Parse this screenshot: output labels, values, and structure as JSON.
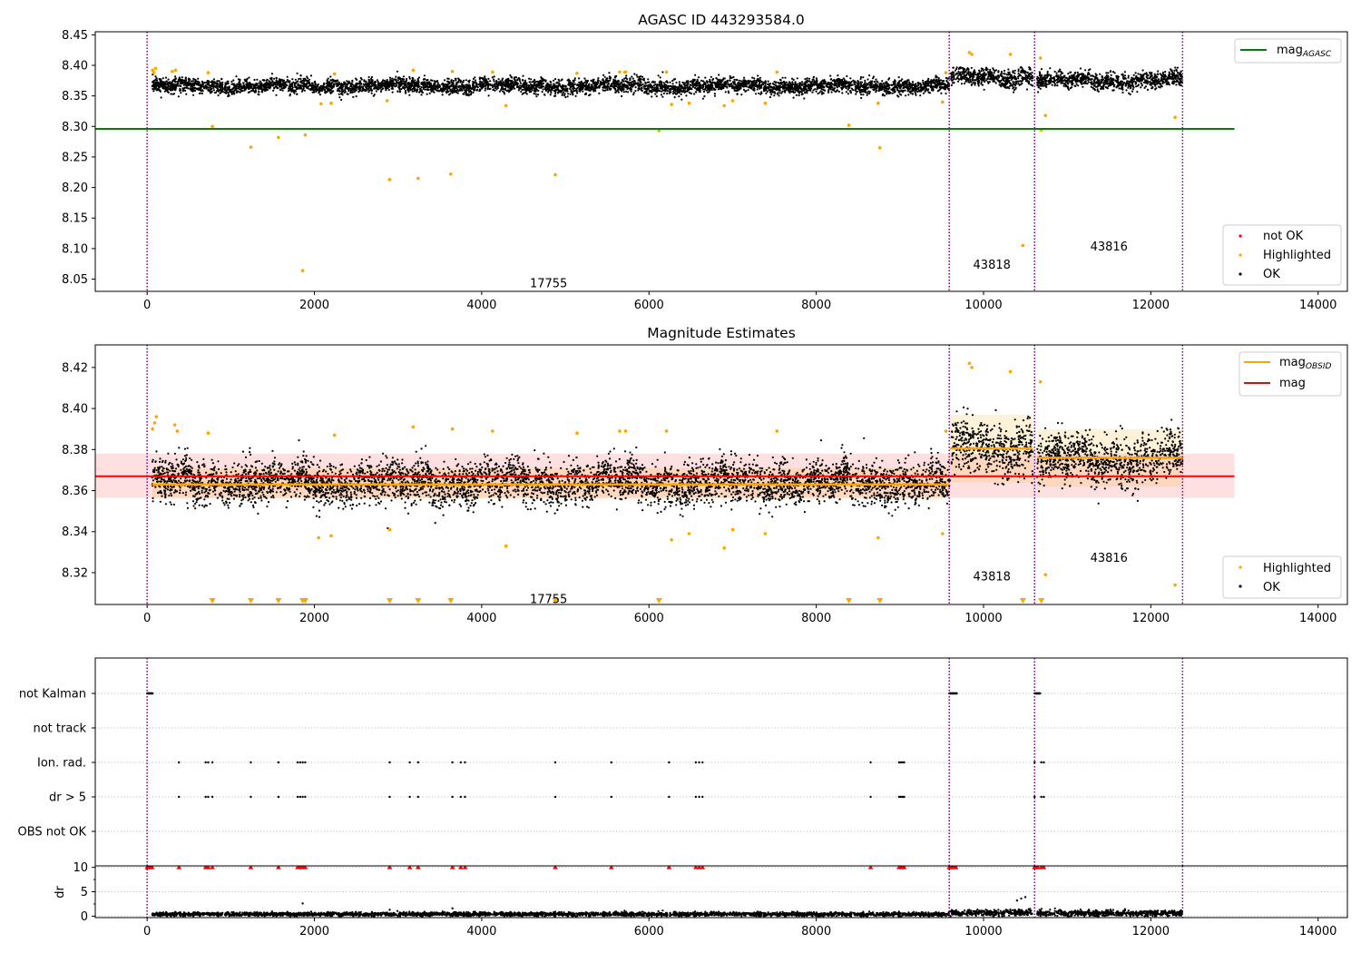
{
  "chart_data": [
    {
      "type": "scatter",
      "title": "AGASC ID 443293584.0",
      "xlabel": "",
      "ylabel": "",
      "xlim": [
        -620,
        14350
      ],
      "ylim": [
        8.03,
        8.455
      ],
      "xticks": [
        0,
        2000,
        4000,
        6000,
        8000,
        10000,
        12000,
        14000
      ],
      "xtick_labels": [
        "0",
        "2000",
        "4000",
        "6000",
        "8000",
        "10000",
        "12000",
        "14000"
      ],
      "yticks": [
        8.05,
        8.1,
        8.15,
        8.2,
        8.25,
        8.3,
        8.35,
        8.4,
        8.45
      ],
      "ytick_labels": [
        "8.05",
        "8.10",
        "8.15",
        "8.20",
        "8.25",
        "8.30",
        "8.35",
        "8.40",
        "8.45"
      ],
      "grid": false,
      "obs_boundaries": [
        0,
        9590,
        10610,
        12380
      ],
      "colors": {
        "ok": "#000000",
        "highlighted": "#ffa500",
        "not_ok": "#ff0000",
        "agasc": "#008000",
        "boundary": "#800080"
      },
      "hlines": [
        {
          "name": "agasc",
          "y": 8.296,
          "x": [
            -620,
            13000
          ]
        }
      ],
      "ok_bands": [
        {
          "x": [
            60,
            9590
          ],
          "center": 8.366,
          "spread": 0.01
        },
        {
          "x": [
            9600,
            10590
          ],
          "center": 8.381,
          "spread": 0.012
        },
        {
          "x": [
            10640,
            12380
          ],
          "center": 8.375,
          "spread": 0.011
        }
      ],
      "highlighted_points": [
        [
          65,
          8.392
        ],
        [
          80,
          8.388
        ],
        [
          100,
          8.395
        ],
        [
          300,
          8.39
        ],
        [
          340,
          8.392
        ],
        [
          730,
          8.388
        ],
        [
          780,
          8.3
        ],
        [
          1240,
          8.266
        ],
        [
          1570,
          8.282
        ],
        [
          1890,
          8.286
        ],
        [
          1860,
          8.064
        ],
        [
          2080,
          8.337
        ],
        [
          2200,
          8.338
        ],
        [
          2240,
          8.386
        ],
        [
          2870,
          8.342
        ],
        [
          2900,
          8.213
        ],
        [
          3180,
          8.392
        ],
        [
          3240,
          8.215
        ],
        [
          3630,
          8.222
        ],
        [
          3650,
          8.39
        ],
        [
          4130,
          8.389
        ],
        [
          4290,
          8.334
        ],
        [
          4880,
          8.221
        ],
        [
          5140,
          8.387
        ],
        [
          5650,
          8.389
        ],
        [
          5720,
          8.389
        ],
        [
          6120,
          8.293
        ],
        [
          6210,
          8.389
        ],
        [
          6270,
          8.336
        ],
        [
          6480,
          8.338
        ],
        [
          6900,
          8.334
        ],
        [
          7000,
          8.342
        ],
        [
          7390,
          8.338
        ],
        [
          7530,
          8.389
        ],
        [
          8390,
          8.302
        ],
        [
          8740,
          8.338
        ],
        [
          8760,
          8.265
        ],
        [
          9510,
          8.34
        ],
        [
          9550,
          8.388
        ],
        [
          9830,
          8.421
        ],
        [
          9860,
          8.418
        ],
        [
          10320,
          8.418
        ],
        [
          10470,
          8.105
        ],
        [
          10680,
          8.412
        ],
        [
          10690,
          8.294
        ],
        [
          10740,
          8.318
        ],
        [
          12290,
          8.315
        ]
      ],
      "annotations": [
        {
          "text": "17755",
          "x": 4800,
          "y": 8.043
        },
        {
          "text": "43818",
          "x": 10100,
          "y": 8.073
        },
        {
          "text": "43816",
          "x": 11500,
          "y": 8.103
        }
      ],
      "legend": {
        "placement": "top-right and lower-right",
        "upper": [
          "mag_AGASC"
        ],
        "lower": [
          "not OK",
          "Highlighted",
          "OK"
        ]
      }
    },
    {
      "type": "scatter",
      "title": "Magnitude Estimates",
      "xlabel": "",
      "ylabel": "",
      "xlim": [
        -620,
        14350
      ],
      "ylim": [
        8.3045,
        8.431
      ],
      "xticks": [
        0,
        2000,
        4000,
        6000,
        8000,
        10000,
        12000,
        14000
      ],
      "xtick_labels": [
        "0",
        "2000",
        "4000",
        "6000",
        "8000",
        "10000",
        "12000",
        "14000"
      ],
      "yticks": [
        8.32,
        8.34,
        8.36,
        8.38,
        8.4,
        8.42
      ],
      "ytick_labels": [
        "8.32",
        "8.34",
        "8.36",
        "8.38",
        "8.40",
        "8.42"
      ],
      "grid": false,
      "obs_boundaries": [
        0,
        9590,
        10610,
        12380
      ],
      "colors": {
        "ok": "#000000",
        "highlighted": "#ffa500",
        "mag": "#ff0000",
        "mag_obsid": "#ffa500",
        "boundary": "#800080"
      },
      "mag_line": {
        "y": 8.367,
        "band": [
          8.3565,
          8.378
        ],
        "x": [
          -620,
          13000
        ]
      },
      "obsid_mags": [
        {
          "x": [
            60,
            9590
          ],
          "y": 8.363,
          "band": [
            8.356,
            8.371
          ]
        },
        {
          "x": [
            9600,
            10590
          ],
          "y": 8.3805,
          "band": [
            8.364,
            8.397
          ]
        },
        {
          "x": [
            10640,
            12380
          ],
          "y": 8.376,
          "band": [
            8.362,
            8.39
          ]
        }
      ],
      "ok_bands": [
        {
          "x": [
            60,
            9590
          ],
          "center": 8.364,
          "spread": 0.0085
        },
        {
          "x": [
            9600,
            10590
          ],
          "center": 8.381,
          "spread": 0.011
        },
        {
          "x": [
            10640,
            12380
          ],
          "center": 8.375,
          "spread": 0.01
        }
      ],
      "highlighted_points": [
        [
          65,
          8.39
        ],
        [
          90,
          8.393
        ],
        [
          110,
          8.396
        ],
        [
          330,
          8.392
        ],
        [
          360,
          8.389
        ],
        [
          730,
          8.388
        ],
        [
          2050,
          8.337
        ],
        [
          2200,
          8.338
        ],
        [
          2240,
          8.387
        ],
        [
          2900,
          8.341
        ],
        [
          3180,
          8.391
        ],
        [
          3650,
          8.39
        ],
        [
          4130,
          8.389
        ],
        [
          4290,
          8.333
        ],
        [
          5140,
          8.388
        ],
        [
          5650,
          8.389
        ],
        [
          5720,
          8.389
        ],
        [
          6210,
          8.389
        ],
        [
          6270,
          8.336
        ],
        [
          6480,
          8.339
        ],
        [
          6900,
          8.332
        ],
        [
          7000,
          8.341
        ],
        [
          7390,
          8.339
        ],
        [
          7530,
          8.389
        ],
        [
          8740,
          8.337
        ],
        [
          9510,
          8.339
        ],
        [
          9550,
          8.389
        ],
        [
          9830,
          8.422
        ],
        [
          9860,
          8.42
        ],
        [
          10320,
          8.418
        ],
        [
          10680,
          8.413
        ],
        [
          10740,
          8.319
        ],
        [
          12290,
          8.314
        ]
      ],
      "off_axis_markers_x": [
        780,
        1240,
        1570,
        1860,
        1890,
        2900,
        3240,
        3630,
        4880,
        6120,
        8390,
        8760,
        10470,
        10690
      ],
      "annotations": [
        {
          "text": "17755",
          "x": 4800,
          "y": 8.307
        },
        {
          "text": "43818",
          "x": 10100,
          "y": 8.318
        },
        {
          "text": "43816",
          "x": 11500,
          "y": 8.327
        }
      ],
      "legend": {
        "placement": "top-right and lower-right",
        "upper": [
          "mag_OBSID",
          "mag"
        ],
        "lower": [
          "Highlighted",
          "OK"
        ]
      }
    },
    {
      "type": "scatter",
      "title": "",
      "xlabel": "",
      "ylabel": "",
      "xlim": [
        -620,
        14350
      ],
      "categories": [
        "not Kalman",
        "not track",
        "Ion. rad.",
        "dr > 5",
        "OBS not OK"
      ],
      "grid": "horizontal dotted",
      "obs_boundaries": [
        0,
        9590,
        10610,
        12380
      ],
      "flag_points": {
        "not Kalman": [
          [
            0,
            70
          ],
          [
            9590,
            9680
          ],
          [
            10610,
            10680
          ]
        ],
        "not track": [],
        "Ion. rad.": [
          380,
          700,
          730,
          780,
          1240,
          1570,
          1800,
          1830,
          1860,
          1890,
          2900,
          3140,
          3240,
          3650,
          3750,
          3800,
          4880,
          5550,
          6240,
          6560,
          6600,
          6640,
          8650,
          8990,
          9010,
          9030,
          9050,
          10610,
          10690,
          10720
        ],
        "dr > 5": [
          380,
          700,
          730,
          780,
          1240,
          1570,
          1800,
          1830,
          1860,
          1890,
          2900,
          3140,
          3240,
          3650,
          3750,
          3800,
          4880,
          5550,
          6240,
          6560,
          6600,
          6640,
          8650,
          8990,
          9010,
          9030,
          9050,
          10610,
          10690,
          10720
        ],
        "OBS not OK": []
      }
    },
    {
      "type": "scatter",
      "title": "",
      "xlabel": "",
      "ylabel": "dr",
      "xlim": [
        -620,
        14350
      ],
      "ylim": [
        -0.3,
        10.3
      ],
      "xticks": [
        0,
        2000,
        4000,
        6000,
        8000,
        10000,
        12000,
        14000
      ],
      "xtick_labels": [
        "0",
        "2000",
        "4000",
        "6000",
        "8000",
        "10000",
        "12000",
        "14000"
      ],
      "yticks": [
        0,
        5,
        10
      ],
      "ytick_labels": [
        "0",
        "5",
        "10"
      ],
      "grid": "horizontal dotted",
      "obs_boundaries": [
        0,
        9590,
        10610,
        12380
      ],
      "colors": {
        "ok": "#000000",
        "clipped": "#ff0000"
      },
      "ok_bands": [
        {
          "x": [
            60,
            9590
          ],
          "center": 0.4,
          "spread": 0.2
        },
        {
          "x": [
            9600,
            10590
          ],
          "center": 0.7,
          "spread": 0.3
        },
        {
          "x": [
            10640,
            12380
          ],
          "center": 0.6,
          "spread": 0.3
        }
      ],
      "extra_points": [
        [
          1860,
          2.6
        ],
        [
          2900,
          1.3
        ],
        [
          3650,
          1.6
        ],
        [
          10400,
          3.2
        ],
        [
          10450,
          3.6
        ],
        [
          10500,
          3.9
        ]
      ],
      "clipped_markers_x": [
        0,
        20,
        40,
        60,
        380,
        700,
        730,
        780,
        1240,
        1570,
        1800,
        1830,
        1860,
        1890,
        2900,
        3140,
        3240,
        3650,
        3750,
        3800,
        4880,
        5550,
        6240,
        6560,
        6600,
        6640,
        8650,
        8990,
        9010,
        9030,
        9050,
        9590,
        9610,
        9630,
        9650,
        9670,
        10610,
        10630,
        10650,
        10690,
        10720
      ]
    }
  ]
}
